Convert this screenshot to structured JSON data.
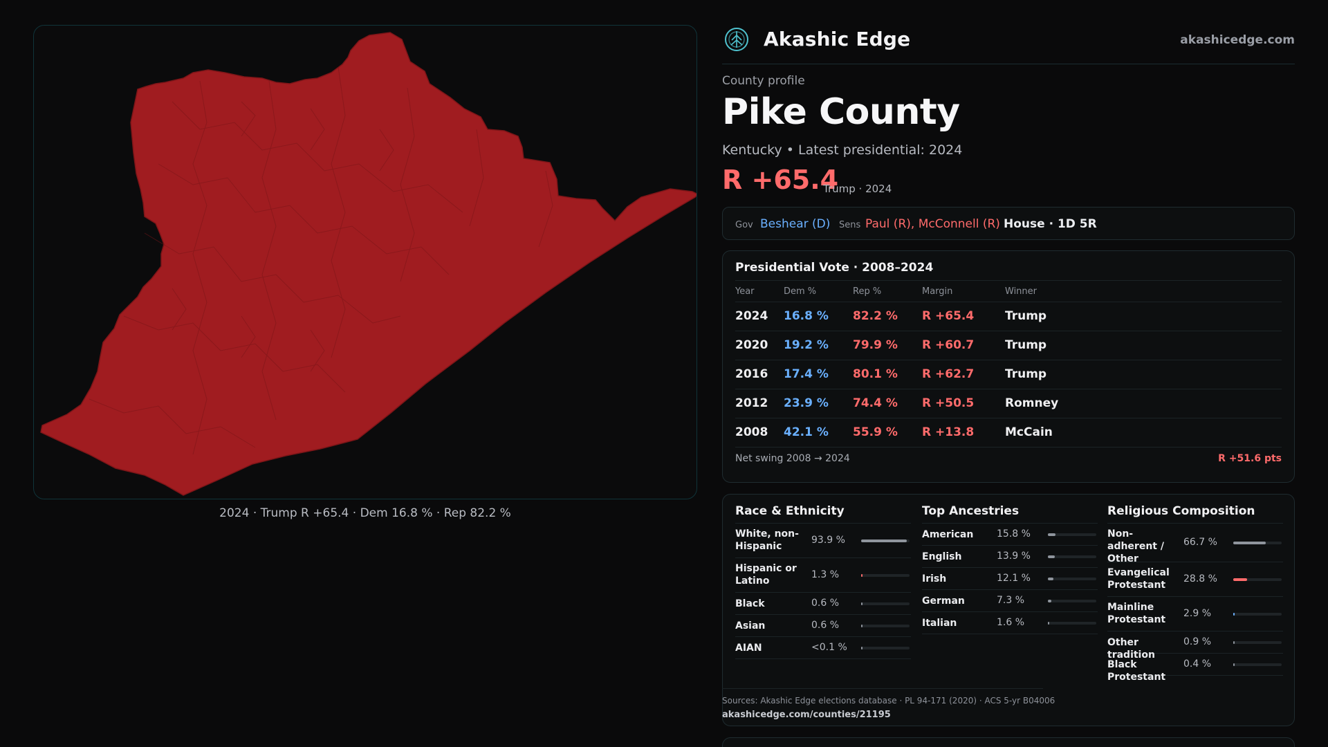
{
  "map": {
    "caption": "2024 · Trump R +65.4 · Dem 16.8 % · Rep 82.2 %",
    "fill_color": "#a01c20",
    "border_color": "#7e1518"
  },
  "brand": {
    "name": "Akashic Edge",
    "url": "akashicedge.com",
    "logo_icon": "tree-of-life-icon"
  },
  "profile": {
    "eyebrow": "County profile",
    "title": "Pike County",
    "subtitle": "Kentucky • Latest presidential: 2024",
    "margin": "R +65.4",
    "margin_note": "Trump · 2024"
  },
  "officials": {
    "gov_label": "Gov",
    "gov_value": "Beshear (D)",
    "sens_label": "Sens",
    "sens_value": "Paul (R), McConnell (R)",
    "house": "House · 1D 5R"
  },
  "presidential": {
    "title": "Presidential Vote · 2008–2024",
    "headers": {
      "year": "Year",
      "dem": "Dem %",
      "rep": "Rep %",
      "margin": "Margin",
      "winner": "Winner"
    },
    "rows": [
      {
        "year": "2024",
        "dem": "16.8 %",
        "rep": "82.2 %",
        "margin": "R +65.4",
        "winner": "Trump"
      },
      {
        "year": "2020",
        "dem": "19.2 %",
        "rep": "79.9 %",
        "margin": "R +60.7",
        "winner": "Trump"
      },
      {
        "year": "2016",
        "dem": "17.4 %",
        "rep": "80.1 %",
        "margin": "R +62.7",
        "winner": "Trump"
      },
      {
        "year": "2012",
        "dem": "23.9 %",
        "rep": "74.4 %",
        "margin": "R +50.5",
        "winner": "Romney"
      },
      {
        "year": "2008",
        "dem": "42.1 %",
        "rep": "55.9 %",
        "margin": "R +13.8",
        "winner": "McCain"
      }
    ],
    "swing_label": "Net swing 2008 → 2024",
    "swing_value": "R +51.6 pts"
  },
  "demographics": {
    "race": {
      "title": "Race & Ethnicity",
      "items": [
        {
          "label": "White, non-Hispanic",
          "value": "93.9 %",
          "fraction": 0.939,
          "color": "#8f959d"
        },
        {
          "label": "Hispanic or Latino",
          "value": "1.3 %",
          "fraction": 0.013,
          "color": "#ff6b6b"
        },
        {
          "label": "Black",
          "value": "0.6 %",
          "fraction": 0.006,
          "color": "#8f959d"
        },
        {
          "label": "Asian",
          "value": "0.6 %",
          "fraction": 0.006,
          "color": "#8f959d"
        },
        {
          "label": "AIAN",
          "value": "<0.1 %",
          "fraction": 0.001,
          "color": "#8f959d"
        }
      ]
    },
    "ancestry": {
      "title": "Top Ancestries",
      "items": [
        {
          "label": "American",
          "value": "15.8 %",
          "fraction": 0.158,
          "color": "#8f959d"
        },
        {
          "label": "English",
          "value": "13.9 %",
          "fraction": 0.139,
          "color": "#8f959d"
        },
        {
          "label": "Irish",
          "value": "12.1 %",
          "fraction": 0.121,
          "color": "#8f959d"
        },
        {
          "label": "German",
          "value": "7.3 %",
          "fraction": 0.073,
          "color": "#8f959d"
        },
        {
          "label": "Italian",
          "value": "1.6 %",
          "fraction": 0.016,
          "color": "#8f959d"
        }
      ]
    },
    "religion": {
      "title": "Religious Composition",
      "items": [
        {
          "label": "Non-adherent / Other",
          "value": "66.7 %",
          "fraction": 0.667,
          "color": "#8f959d"
        },
        {
          "label": "Evangelical Protestant",
          "value": "28.8 %",
          "fraction": 0.288,
          "color": "#ff6b6b"
        },
        {
          "label": "Mainline Protestant",
          "value": "2.9 %",
          "fraction": 0.029,
          "color": "#6ab0ff"
        },
        {
          "label": "Other tradition",
          "value": "0.9 %",
          "fraction": 0.009,
          "color": "#8f959d"
        },
        {
          "label": "Black Protestant",
          "value": "0.4 %",
          "fraction": 0.004,
          "color": "#8f959d"
        }
      ]
    }
  },
  "sources": {
    "text": "Sources: Akashic Edge elections database · PL 94-171 (2020) · ACS 5-yr B04006",
    "url": "akashicedge.com/counties/21195"
  }
}
